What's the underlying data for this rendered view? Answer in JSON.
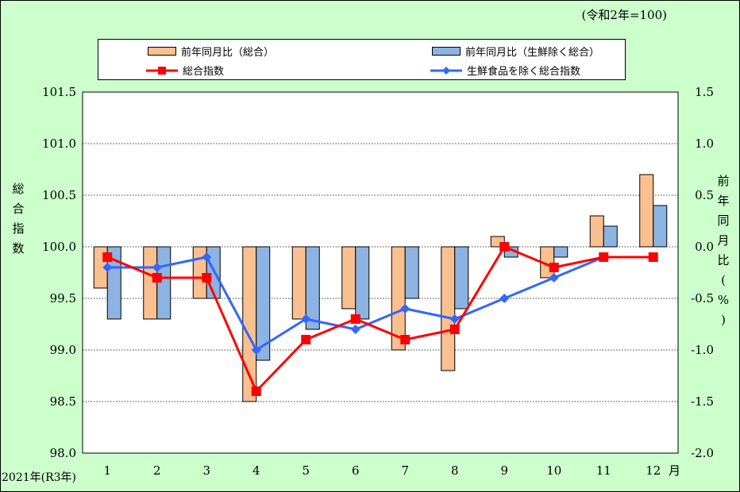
{
  "unit_note": "(令和2年=100)",
  "year_label": "2021年(R3年)",
  "month_suffix": "月",
  "colors": {
    "bar_all": "#fac090",
    "bar_core": "#8db3e2",
    "line_all": "#ff0000",
    "line_core": "#3366ff",
    "plot_bg": "#ffffff",
    "page_bg": "#ccffcc"
  },
  "legend": {
    "bar_all": "前年同月比（総合）",
    "bar_core": "前年同月比（生鮮除く総合）",
    "line_all": "総合指数",
    "line_core": "生鮮食品を除く総合指数"
  },
  "chart_data": {
    "type": "bar+line",
    "categories": [
      "1",
      "2",
      "3",
      "4",
      "5",
      "6",
      "7",
      "8",
      "9",
      "10",
      "11",
      "12"
    ],
    "left_axis": {
      "label": "総合指数",
      "ylim": [
        98.0,
        101.5
      ],
      "ticks": [
        "98.0",
        "98.5",
        "99.0",
        "99.5",
        "100.0",
        "100.5",
        "101.0",
        "101.5"
      ]
    },
    "right_axis": {
      "label": "前年同月比(%)",
      "ylim": [
        -2.0,
        1.5
      ],
      "ticks": [
        "-2.0",
        "-1.5",
        "-1.0",
        "-0.5",
        "0.0",
        "0.5",
        "1.0",
        "1.5"
      ]
    },
    "series": [
      {
        "name": "前年同月比（総合）",
        "type": "bar",
        "axis": "right",
        "values": [
          -0.4,
          -0.7,
          -0.5,
          -1.5,
          -0.7,
          -0.6,
          -1.0,
          -1.2,
          0.1,
          -0.3,
          0.3,
          0.7
        ]
      },
      {
        "name": "前年同月比（生鮮除く総合）",
        "type": "bar",
        "axis": "right",
        "values": [
          -0.7,
          -0.7,
          -0.5,
          -1.1,
          -0.8,
          -0.7,
          -0.5,
          -0.6,
          -0.1,
          -0.1,
          0.2,
          0.4
        ]
      },
      {
        "name": "総合指数",
        "type": "line",
        "axis": "left",
        "values": [
          99.9,
          99.7,
          99.7,
          98.6,
          99.1,
          99.3,
          99.1,
          99.2,
          100.0,
          99.8,
          99.9,
          99.9
        ]
      },
      {
        "name": "生鮮食品を除く総合指数",
        "type": "line",
        "axis": "left",
        "values": [
          99.8,
          99.8,
          99.9,
          99.0,
          99.3,
          99.2,
          99.4,
          99.3,
          99.5,
          99.7,
          99.9,
          99.9
        ]
      }
    ],
    "grid": "horizontal dotted"
  }
}
